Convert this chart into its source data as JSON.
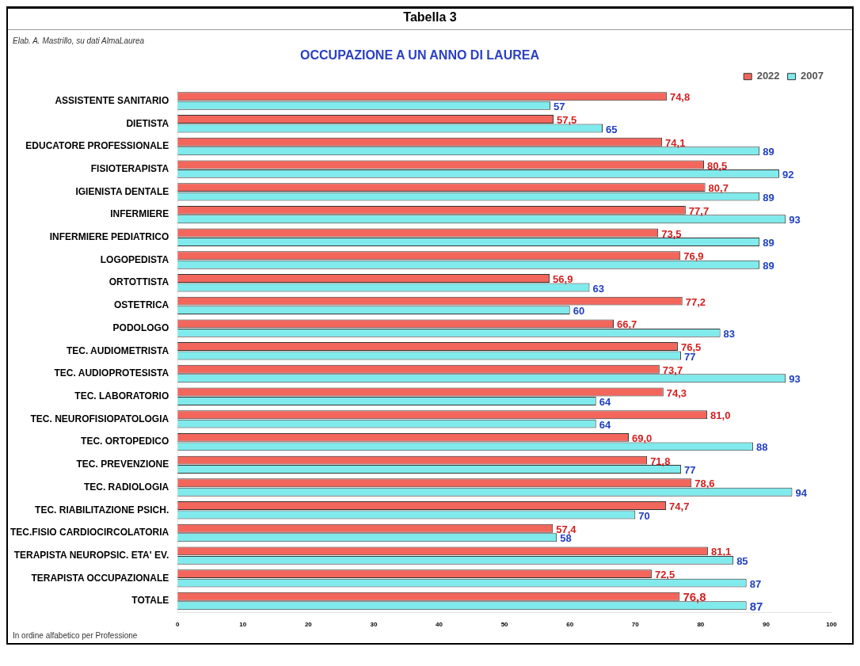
{
  "chart_data": {
    "type": "bar",
    "orientation": "horizontal",
    "title": "Tabella 3",
    "subtitle": "OCCUPAZIONE A UN ANNO DI LAUREA",
    "annotations": [
      "Elab. A. Mastrillo, su dati AlmaLaurea",
      "In ordine alfabetico per Professione"
    ],
    "categories": [
      "ASSISTENTE SANITARIO",
      "DIETISTA",
      "EDUCATORE PROFESSIONALE",
      "FISIOTERAPISTA",
      "IGIENISTA DENTALE",
      "INFERMIERE",
      "INFERMIERE PEDIATRICO",
      "LOGOPEDISTA",
      "ORTOTTISTA",
      "OSTETRICA",
      "PODOLOGO",
      "TEC. AUDIOMETRISTA",
      "TEC. AUDIOPROTESISTA",
      "TEC. LABORATORIO",
      "TEC. NEUROFISIOPATOLOGIA",
      "TEC. ORTOPEDICO",
      "TEC. PREVENZIONE",
      "TEC. RADIOLOGIA",
      "TEC. RIABILITAZIONE PSICH.",
      "TEC.FISIO CARDIOCIRCOLATORIA",
      "TERAPISTA NEUROPSIC. ETA' EV.",
      "TERAPISTA OCCUPAZIONALE",
      "TOTALE"
    ],
    "series": [
      {
        "name": "2022",
        "color": "#f2665c",
        "values": [
          74.8,
          57.5,
          74.1,
          80.5,
          80.7,
          77.7,
          73.5,
          76.9,
          56.9,
          77.2,
          66.7,
          76.5,
          73.7,
          74.3,
          81.0,
          69.0,
          71.8,
          78.6,
          74.7,
          57.4,
          81.1,
          72.5,
          76.8
        ],
        "value_labels": [
          "74,8",
          "57,5",
          "74,1",
          "80,5",
          "80,7",
          "77,7",
          "73,5",
          "76,9",
          "56,9",
          "77,2",
          "66,7",
          "76,5",
          "73,7",
          "74,3",
          "81,0",
          "69,0",
          "71,8",
          "78,6",
          "74,7",
          "57,4",
          "81,1",
          "72,5",
          "76,8"
        ]
      },
      {
        "name": "2007",
        "color": "#80eaec",
        "values": [
          57,
          65,
          89,
          92,
          89,
          93,
          89,
          89,
          63,
          60,
          83,
          77,
          93,
          64,
          64,
          88,
          77,
          94,
          70,
          58,
          85,
          87,
          87
        ],
        "value_labels": [
          "57",
          "65",
          "89",
          "92",
          "89",
          "93",
          "89",
          "89",
          "63",
          "60",
          "83",
          "77",
          "93",
          "64",
          "64",
          "88",
          "77",
          "94",
          "70",
          "58",
          "85",
          "87",
          "87"
        ]
      }
    ],
    "xlim": [
      0,
      100
    ],
    "xticks": [
      0,
      10,
      20,
      30,
      40,
      50,
      60,
      70,
      80,
      90,
      100
    ],
    "grid": false,
    "legend": "top right"
  }
}
